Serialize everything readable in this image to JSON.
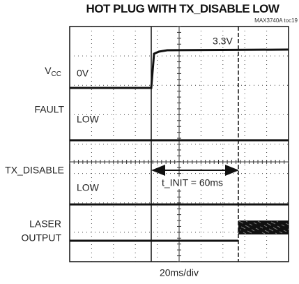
{
  "header": {
    "title": "HOT PLUG WITH TX_DISABLE LOW",
    "subtitle": "MAX3740A toc19"
  },
  "channels": [
    {
      "label_main": "V",
      "label_sub": "CC"
    },
    {
      "label": "FAULT"
    },
    {
      "label": "TX_DISABLE"
    },
    {
      "label_lines": [
        "LASER",
        "OUTPUT"
      ]
    }
  ],
  "annotations": {
    "vcc_low": "0V",
    "vcc_high": "3.3V",
    "fault_level": "LOW",
    "txdisable_level": "LOW",
    "t_init": "t_INIT = 60ms"
  },
  "footer": {
    "timebase": "20ms/div"
  }
}
